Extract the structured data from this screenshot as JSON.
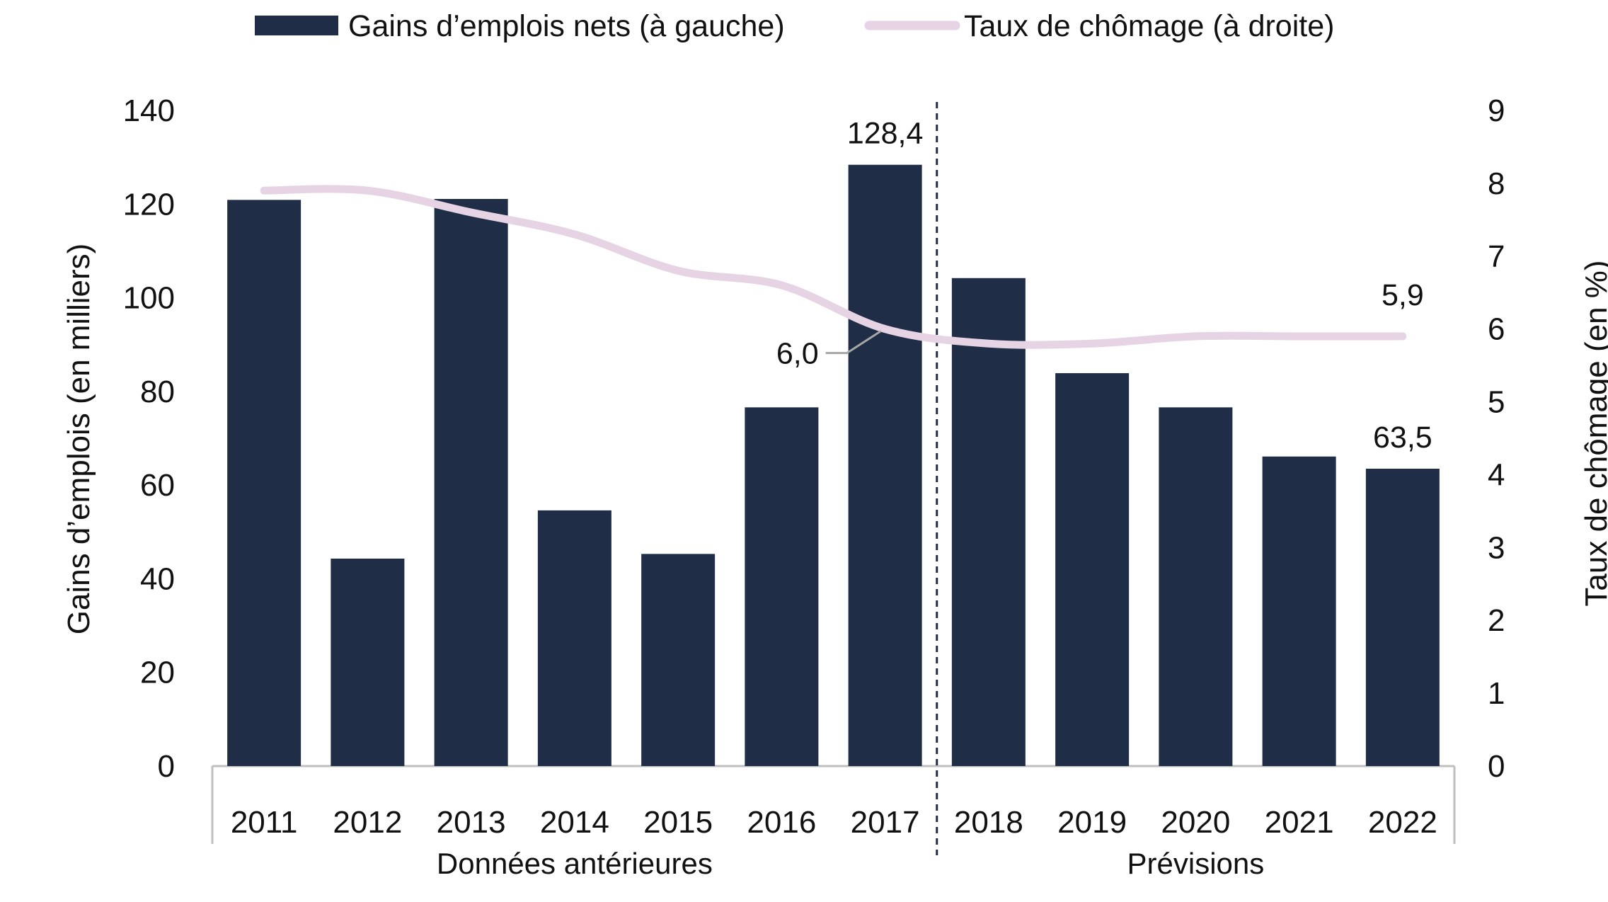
{
  "chart_data": {
    "type": "bar",
    "categories": [
      "2011",
      "2012",
      "2013",
      "2014",
      "2015",
      "2016",
      "2017",
      "2018",
      "2019",
      "2020",
      "2021",
      "2022"
    ],
    "series": [
      {
        "name": "Gains d’emplois nets (à gauche)",
        "type": "bar",
        "axis": "left",
        "color": "#1f2d47",
        "values": [
          120.9,
          44.3,
          121.1,
          54.6,
          45.3,
          76.6,
          128.4,
          104.2,
          83.9,
          76.6,
          66.1,
          63.5
        ]
      },
      {
        "name": "Taux de chômage (à droite)",
        "type": "line",
        "axis": "right",
        "color": "#e6d3e4",
        "values": [
          7.9,
          7.9,
          7.6,
          7.3,
          6.8,
          6.6,
          6.0,
          5.8,
          5.8,
          5.9,
          5.9,
          5.9
        ]
      }
    ],
    "ylabel": "Gains d’emplois (en milliers)",
    "ylabel_right": "Taux de chômage (en %)",
    "ylim": [
      0,
      140
    ],
    "ylim_right": [
      0,
      9
    ],
    "yticks": [
      "0",
      "20",
      "40",
      "60",
      "80",
      "100",
      "120",
      "140"
    ],
    "yticks_right": [
      "0",
      "1",
      "2",
      "3",
      "4",
      "5",
      "6",
      "7",
      "8",
      "9"
    ],
    "groups": [
      {
        "label": "Données antérieures",
        "from": "2011",
        "to": "2017"
      },
      {
        "label": "Prévisions",
        "from": "2018",
        "to": "2022"
      }
    ],
    "annotations": [
      {
        "series": 0,
        "category": "2017",
        "text": "128,4"
      },
      {
        "series": 0,
        "category": "2022",
        "text": "63,5"
      },
      {
        "series": 1,
        "category": "2017",
        "text": "6,0",
        "leader": true
      },
      {
        "series": 1,
        "category": "2022",
        "text": "5,9"
      }
    ],
    "legend": "top",
    "grid": false,
    "divider": "dashed line between 2017 and 2018",
    "divider_color": "#1f2d47",
    "axis_color": "#bfbfbf"
  }
}
